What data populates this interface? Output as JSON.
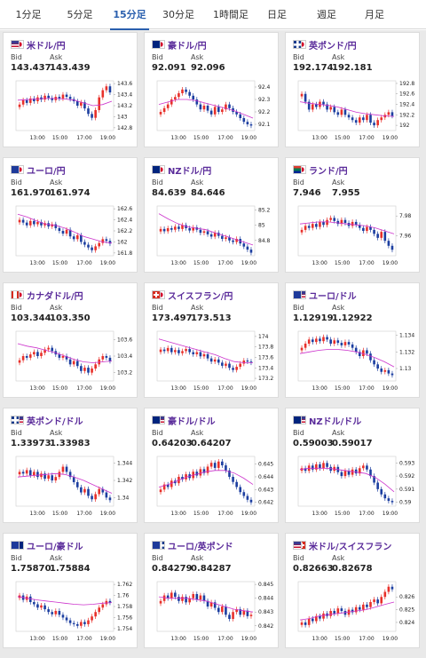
{
  "tabs": [
    {
      "label": "1分足",
      "active": false
    },
    {
      "label": "5分足",
      "active": false
    },
    {
      "label": "15分足",
      "active": true
    },
    {
      "label": "30分足",
      "active": false
    },
    {
      "label": "1時間足",
      "active": false
    },
    {
      "label": "日足",
      "active": false
    },
    {
      "label": "週足",
      "active": false
    },
    {
      "label": "月足",
      "active": false
    }
  ],
  "labels": {
    "bid": "Bid",
    "ask": "Ask"
  },
  "colors": {
    "up": "#e8302a",
    "down": "#1c3ea0",
    "ma": "#cc33cc",
    "pair_text": "#5a2b9a",
    "active_tab": "#2a5fae"
  },
  "cards": [
    {
      "pair": "米ドル/円",
      "flags": [
        "us",
        "jp"
      ],
      "bid": "143.437",
      "ask": "143.439",
      "chart_data": {
        "type": "candlestick",
        "xticks": [
          "13:00",
          "15:00",
          "17:00",
          "19:00"
        ],
        "yticks": [
          "143.6",
          "143.4",
          "143.2",
          "143",
          "142.8"
        ],
        "ylim": [
          142.75,
          143.65
        ],
        "closes": [
          143.22,
          143.3,
          143.25,
          143.33,
          143.28,
          143.35,
          143.31,
          143.38,
          143.34,
          143.3,
          143.36,
          143.33,
          143.4,
          143.36,
          143.32,
          143.28,
          143.2,
          143.26,
          143.15,
          143.05,
          142.98,
          143.12,
          143.35,
          143.48,
          143.55,
          143.44
        ],
        "ma": [
          143.3,
          143.31,
          143.32,
          143.33,
          143.33,
          143.32,
          143.3,
          143.25,
          143.2,
          143.22,
          143.28
        ]
      }
    },
    {
      "pair": "豪ドル/円",
      "flags": [
        "au",
        "jp"
      ],
      "bid": "92.091",
      "ask": "92.096",
      "chart_data": {
        "type": "candlestick",
        "xticks": [
          "13:00",
          "15:00",
          "17:00",
          "19:00"
        ],
        "yticks": [
          "92.4",
          "92.3",
          "92.2",
          "92.1"
        ],
        "ylim": [
          92.05,
          92.45
        ],
        "closes": [
          92.2,
          92.23,
          92.26,
          92.3,
          92.32,
          92.35,
          92.38,
          92.36,
          92.33,
          92.3,
          92.26,
          92.22,
          92.25,
          92.21,
          92.18,
          92.24,
          92.2,
          92.22,
          92.26,
          92.23,
          92.2,
          92.18,
          92.15,
          92.12,
          92.1,
          92.09
        ],
        "ma": [
          92.26,
          92.28,
          92.3,
          92.3,
          92.29,
          92.27,
          92.25,
          92.23,
          92.21,
          92.18,
          92.15
        ]
      }
    },
    {
      "pair": "英ポンド/円",
      "flags": [
        "gb",
        "jp"
      ],
      "bid": "192.174",
      "ask": "192.181",
      "chart_data": {
        "type": "candlestick",
        "xticks": [
          "13:00",
          "15:00",
          "17:00",
          "19:00"
        ],
        "yticks": [
          "192.8",
          "192.6",
          "192.4",
          "192.2",
          "192"
        ],
        "ylim": [
          191.9,
          192.85
        ],
        "closes": [
          192.6,
          192.45,
          192.3,
          192.4,
          192.35,
          192.45,
          192.4,
          192.3,
          192.35,
          192.25,
          192.2,
          192.3,
          192.2,
          192.15,
          192.1,
          192.05,
          192.15,
          192.1,
          192.2,
          192.05,
          192.0,
          192.1,
          192.15,
          192.2,
          192.25,
          192.18
        ],
        "ma": [
          192.45,
          192.42,
          192.4,
          192.38,
          192.35,
          192.3,
          192.25,
          192.22,
          192.2,
          192.18,
          192.17
        ]
      }
    },
    {
      "pair": "ユーロ/円",
      "flags": [
        "eu",
        "jp"
      ],
      "bid": "161.970",
      "ask": "161.974",
      "chart_data": {
        "type": "candlestick",
        "xticks": [
          "13:00",
          "15:00",
          "17:00",
          "19:00"
        ],
        "yticks": [
          "162.6",
          "162.4",
          "162.2",
          "162",
          "161.8"
        ],
        "ylim": [
          161.75,
          162.65
        ],
        "closes": [
          162.4,
          162.35,
          162.3,
          162.38,
          162.32,
          162.36,
          162.3,
          162.34,
          162.28,
          162.32,
          162.25,
          162.2,
          162.15,
          162.22,
          162.1,
          162.05,
          162.12,
          162.0,
          161.95,
          161.9,
          161.85,
          161.92,
          161.98,
          162.05,
          162.02,
          161.97
        ],
        "ma": [
          162.5,
          162.45,
          162.38,
          162.32,
          162.3,
          162.25,
          162.18,
          162.1,
          162.05,
          162.0,
          161.98
        ]
      }
    },
    {
      "pair": "NZドル/円",
      "flags": [
        "nz",
        "jp"
      ],
      "bid": "84.639",
      "ask": "84.646",
      "chart_data": {
        "type": "candlestick",
        "xticks": [
          "13:00",
          "15:00",
          "17:00",
          "19:00"
        ],
        "yticks": [
          "85.2",
          "85",
          "84.8"
        ],
        "ylim": [
          84.6,
          85.25
        ],
        "closes": [
          84.95,
          84.92,
          84.96,
          84.94,
          84.98,
          84.95,
          85.0,
          84.96,
          84.93,
          84.97,
          84.94,
          84.9,
          84.92,
          84.88,
          84.85,
          84.9,
          84.86,
          84.82,
          84.84,
          84.8,
          84.78,
          84.82,
          84.76,
          84.72,
          84.68,
          84.64
        ],
        "ma": [
          85.15,
          85.08,
          85.02,
          84.98,
          84.96,
          84.94,
          84.9,
          84.86,
          84.82,
          84.78,
          84.74
        ]
      }
    },
    {
      "pair": "ランド/円",
      "flags": [
        "za",
        "jp"
      ],
      "bid": "7.946",
      "ask": "7.955",
      "chart_data": {
        "type": "candlestick",
        "xticks": [
          "13:00",
          "15:00",
          "17:00",
          "19:00"
        ],
        "yticks": [
          "7.98",
          "7.96"
        ],
        "ylim": [
          7.94,
          7.99
        ],
        "closes": [
          7.966,
          7.97,
          7.968,
          7.972,
          7.969,
          7.974,
          7.971,
          7.976,
          7.978,
          7.975,
          7.972,
          7.976,
          7.973,
          7.97,
          7.974,
          7.971,
          7.968,
          7.965,
          7.969,
          7.966,
          7.962,
          7.958,
          7.964,
          7.955,
          7.95,
          7.946
        ],
        "ma": [
          7.972,
          7.973,
          7.974,
          7.974,
          7.973,
          7.972,
          7.971,
          7.97,
          7.968,
          7.965,
          7.962
        ]
      }
    },
    {
      "pair": "カナダドル/円",
      "flags": [
        "ca",
        "jp"
      ],
      "bid": "103.344",
      "ask": "103.350",
      "chart_data": {
        "type": "candlestick",
        "xticks": [
          "13:00",
          "15:00",
          "17:00",
          "19:00"
        ],
        "yticks": [
          "103.6",
          "103.4",
          "103.2"
        ],
        "ylim": [
          103.1,
          103.7
        ],
        "closes": [
          103.35,
          103.4,
          103.38,
          103.42,
          103.45,
          103.4,
          103.44,
          103.48,
          103.5,
          103.46,
          103.42,
          103.38,
          103.4,
          103.36,
          103.3,
          103.34,
          103.28,
          103.22,
          103.26,
          103.2,
          103.25,
          103.3,
          103.36,
          103.4,
          103.38,
          103.34
        ],
        "ma": [
          103.55,
          103.52,
          103.5,
          103.47,
          103.44,
          103.4,
          103.36,
          103.33,
          103.32,
          103.33,
          103.34
        ]
      }
    },
    {
      "pair": "スイスフラン/円",
      "flags": [
        "ch",
        "jp"
      ],
      "bid": "173.497",
      "ask": "173.513",
      "chart_data": {
        "type": "candlestick",
        "xticks": [
          "13:00",
          "15:00",
          "17:00",
          "19:00"
        ],
        "yticks": [
          "174",
          "173.8",
          "173.6",
          "173.4",
          "173.2"
        ],
        "ylim": [
          173.15,
          174.1
        ],
        "closes": [
          173.75,
          173.72,
          173.78,
          173.7,
          173.74,
          173.68,
          173.72,
          173.76,
          173.7,
          173.66,
          173.7,
          173.62,
          173.66,
          173.58,
          173.52,
          173.56,
          173.5,
          173.44,
          173.48,
          173.4,
          173.36,
          173.42,
          173.48,
          173.54,
          173.52,
          173.5
        ],
        "ma": [
          173.95,
          173.9,
          173.85,
          173.8,
          173.75,
          173.7,
          173.65,
          173.58,
          173.52,
          173.5,
          173.5
        ]
      }
    },
    {
      "pair": "ユーロ/ドル",
      "flags": [
        "eu",
        "us"
      ],
      "bid": "1.12919",
      "ask": "1.12922",
      "chart_data": {
        "type": "candlestick",
        "xticks": [
          "13:00",
          "15:00",
          "17:00",
          "19:00"
        ],
        "yticks": [
          "1.134",
          "1.132",
          "1.13"
        ],
        "ylim": [
          1.1285,
          1.1345
        ],
        "closes": [
          1.1325,
          1.133,
          1.1335,
          1.1332,
          1.1336,
          1.1333,
          1.1338,
          1.1335,
          1.133,
          1.1334,
          1.1331,
          1.1328,
          1.1332,
          1.1329,
          1.1325,
          1.132,
          1.1315,
          1.1322,
          1.1318,
          1.131,
          1.1305,
          1.13,
          1.1296,
          1.1298,
          1.1294,
          1.1292
        ],
        "ma": [
          1.1318,
          1.132,
          1.1322,
          1.1323,
          1.1323,
          1.1322,
          1.132,
          1.1317,
          1.1313,
          1.1308,
          1.1302
        ]
      }
    },
    {
      "pair": "英ポンド/ドル",
      "flags": [
        "gb",
        "us"
      ],
      "bid": "1.33973",
      "ask": "1.33983",
      "chart_data": {
        "type": "candlestick",
        "xticks": [
          "13:00",
          "15:00",
          "17:00",
          "19:00"
        ],
        "yticks": [
          "1.344",
          "1.342",
          "1.34"
        ],
        "ylim": [
          1.339,
          1.3448
        ],
        "closes": [
          1.343,
          1.3428,
          1.3432,
          1.3426,
          1.343,
          1.3424,
          1.3428,
          1.3422,
          1.3426,
          1.342,
          1.3424,
          1.343,
          1.3436,
          1.343,
          1.3424,
          1.3418,
          1.3412,
          1.3406,
          1.341,
          1.3402,
          1.3398,
          1.3404,
          1.341,
          1.3406,
          1.34,
          1.3397
        ],
        "ma": [
          1.3424,
          1.3425,
          1.3426,
          1.3427,
          1.3428,
          1.3427,
          1.3424,
          1.342,
          1.3415,
          1.341,
          1.3405
        ]
      }
    },
    {
      "pair": "豪ドル/ドル",
      "flags": [
        "au",
        "us"
      ],
      "bid": "0.64203",
      "ask": "0.64207",
      "chart_data": {
        "type": "candlestick",
        "xticks": [
          "13:00",
          "15:00",
          "17:00",
          "19:00"
        ],
        "yticks": [
          "0.645",
          "0.644",
          "0.643",
          "0.642"
        ],
        "ylim": [
          0.6417,
          0.6456
        ],
        "closes": [
          0.643,
          0.6434,
          0.6432,
          0.6437,
          0.6435,
          0.644,
          0.6438,
          0.6442,
          0.6439,
          0.6444,
          0.6441,
          0.6446,
          0.6443,
          0.6448,
          0.6451,
          0.6447,
          0.6452,
          0.6449,
          0.6445,
          0.644,
          0.6436,
          0.6432,
          0.6428,
          0.6425,
          0.6422,
          0.642
        ],
        "ma": [
          0.6432,
          0.6434,
          0.6437,
          0.644,
          0.6442,
          0.6444,
          0.6445,
          0.6445,
          0.6443,
          0.6439,
          0.6434
        ]
      }
    },
    {
      "pair": "NZドル/ドル",
      "flags": [
        "nz",
        "us"
      ],
      "bid": "0.59003",
      "ask": "0.59017",
      "chart_data": {
        "type": "candlestick",
        "xticks": [
          "13:00",
          "15:00",
          "17:00",
          "19:00"
        ],
        "yticks": [
          "0.593",
          "0.592",
          "0.591",
          "0.59"
        ],
        "ylim": [
          0.5897,
          0.5935
        ],
        "closes": [
          0.5926,
          0.5924,
          0.5928,
          0.5925,
          0.5929,
          0.5926,
          0.593,
          0.5927,
          0.5924,
          0.5927,
          0.5923,
          0.592,
          0.5924,
          0.5921,
          0.5925,
          0.5922,
          0.5926,
          0.5928,
          0.5925,
          0.592,
          0.5915,
          0.591,
          0.5906,
          0.5903,
          0.5901,
          0.59
        ],
        "ma": [
          0.5925,
          0.5926,
          0.5926,
          0.5926,
          0.5925,
          0.5924,
          0.5923,
          0.5922,
          0.5919,
          0.5914,
          0.5908
        ]
      }
    },
    {
      "pair": "ユーロ/豪ドル",
      "flags": [
        "eu",
        "au"
      ],
      "bid": "1.75870",
      "ask": "1.75884",
      "chart_data": {
        "type": "candlestick",
        "xticks": [
          "13:00",
          "15:00",
          "17:00",
          "19:00"
        ],
        "yticks": [
          "1.762",
          "1.76",
          "1.758",
          "1.756",
          "1.754"
        ],
        "ylim": [
          1.7535,
          1.7625
        ],
        "closes": [
          1.76,
          1.7592,
          1.7598,
          1.7588,
          1.7584,
          1.7578,
          1.7582,
          1.7575,
          1.757,
          1.7566,
          1.7572,
          1.7565,
          1.756,
          1.7555,
          1.755,
          1.7548,
          1.7545,
          1.7552,
          1.7548,
          1.7555,
          1.7562,
          1.757,
          1.7578,
          1.7584,
          1.759,
          1.7587
        ],
        "ma": [
          1.7598,
          1.7595,
          1.7592,
          1.759,
          1.7588,
          1.7586,
          1.7584,
          1.7583,
          1.7584,
          1.7586,
          1.7587
        ]
      }
    },
    {
      "pair": "ユーロ/英ポンド",
      "flags": [
        "eu",
        "gb"
      ],
      "bid": "0.84279",
      "ask": "0.84287",
      "chart_data": {
        "type": "candlestick",
        "xticks": [
          "13:00",
          "15:00",
          "17:00",
          "19:00"
        ],
        "yticks": [
          "0.845",
          "0.844",
          "0.843",
          "0.842"
        ],
        "ylim": [
          0.8416,
          0.8452
        ],
        "closes": [
          0.8438,
          0.8442,
          0.844,
          0.8444,
          0.8441,
          0.8438,
          0.8441,
          0.8437,
          0.844,
          0.8443,
          0.8439,
          0.8442,
          0.8438,
          0.8434,
          0.8437,
          0.8433,
          0.843,
          0.8434,
          0.8428,
          0.8425,
          0.843,
          0.8432,
          0.8428,
          0.8431,
          0.8427,
          0.8428
        ],
        "ma": [
          0.8441,
          0.844,
          0.844,
          0.844,
          0.8439,
          0.8438,
          0.8436,
          0.8434,
          0.8432,
          0.8431,
          0.843
        ]
      }
    },
    {
      "pair": "米ドル/スイスフラン",
      "flags": [
        "us",
        "ch"
      ],
      "bid": "0.82663",
      "ask": "0.82678",
      "chart_data": {
        "type": "candlestick",
        "xticks": [
          "13:00",
          "15:00",
          "17:00",
          "19:00"
        ],
        "yticks": [
          "0.826",
          "0.825",
          "0.824"
        ],
        "ylim": [
          0.8233,
          0.8272
        ],
        "closes": [
          0.824,
          0.8238,
          0.8243,
          0.8241,
          0.8245,
          0.8243,
          0.8247,
          0.8245,
          0.8249,
          0.8247,
          0.8251,
          0.8249,
          0.8246,
          0.825,
          0.8248,
          0.8252,
          0.825,
          0.8254,
          0.8252,
          0.8256,
          0.8258,
          0.8255,
          0.826,
          0.8264,
          0.8268,
          0.8266
        ],
        "ma": [
          0.8242,
          0.8243,
          0.8245,
          0.8246,
          0.8247,
          0.8248,
          0.8249,
          0.825,
          0.8252,
          0.8254,
          0.8256
        ]
      }
    }
  ]
}
